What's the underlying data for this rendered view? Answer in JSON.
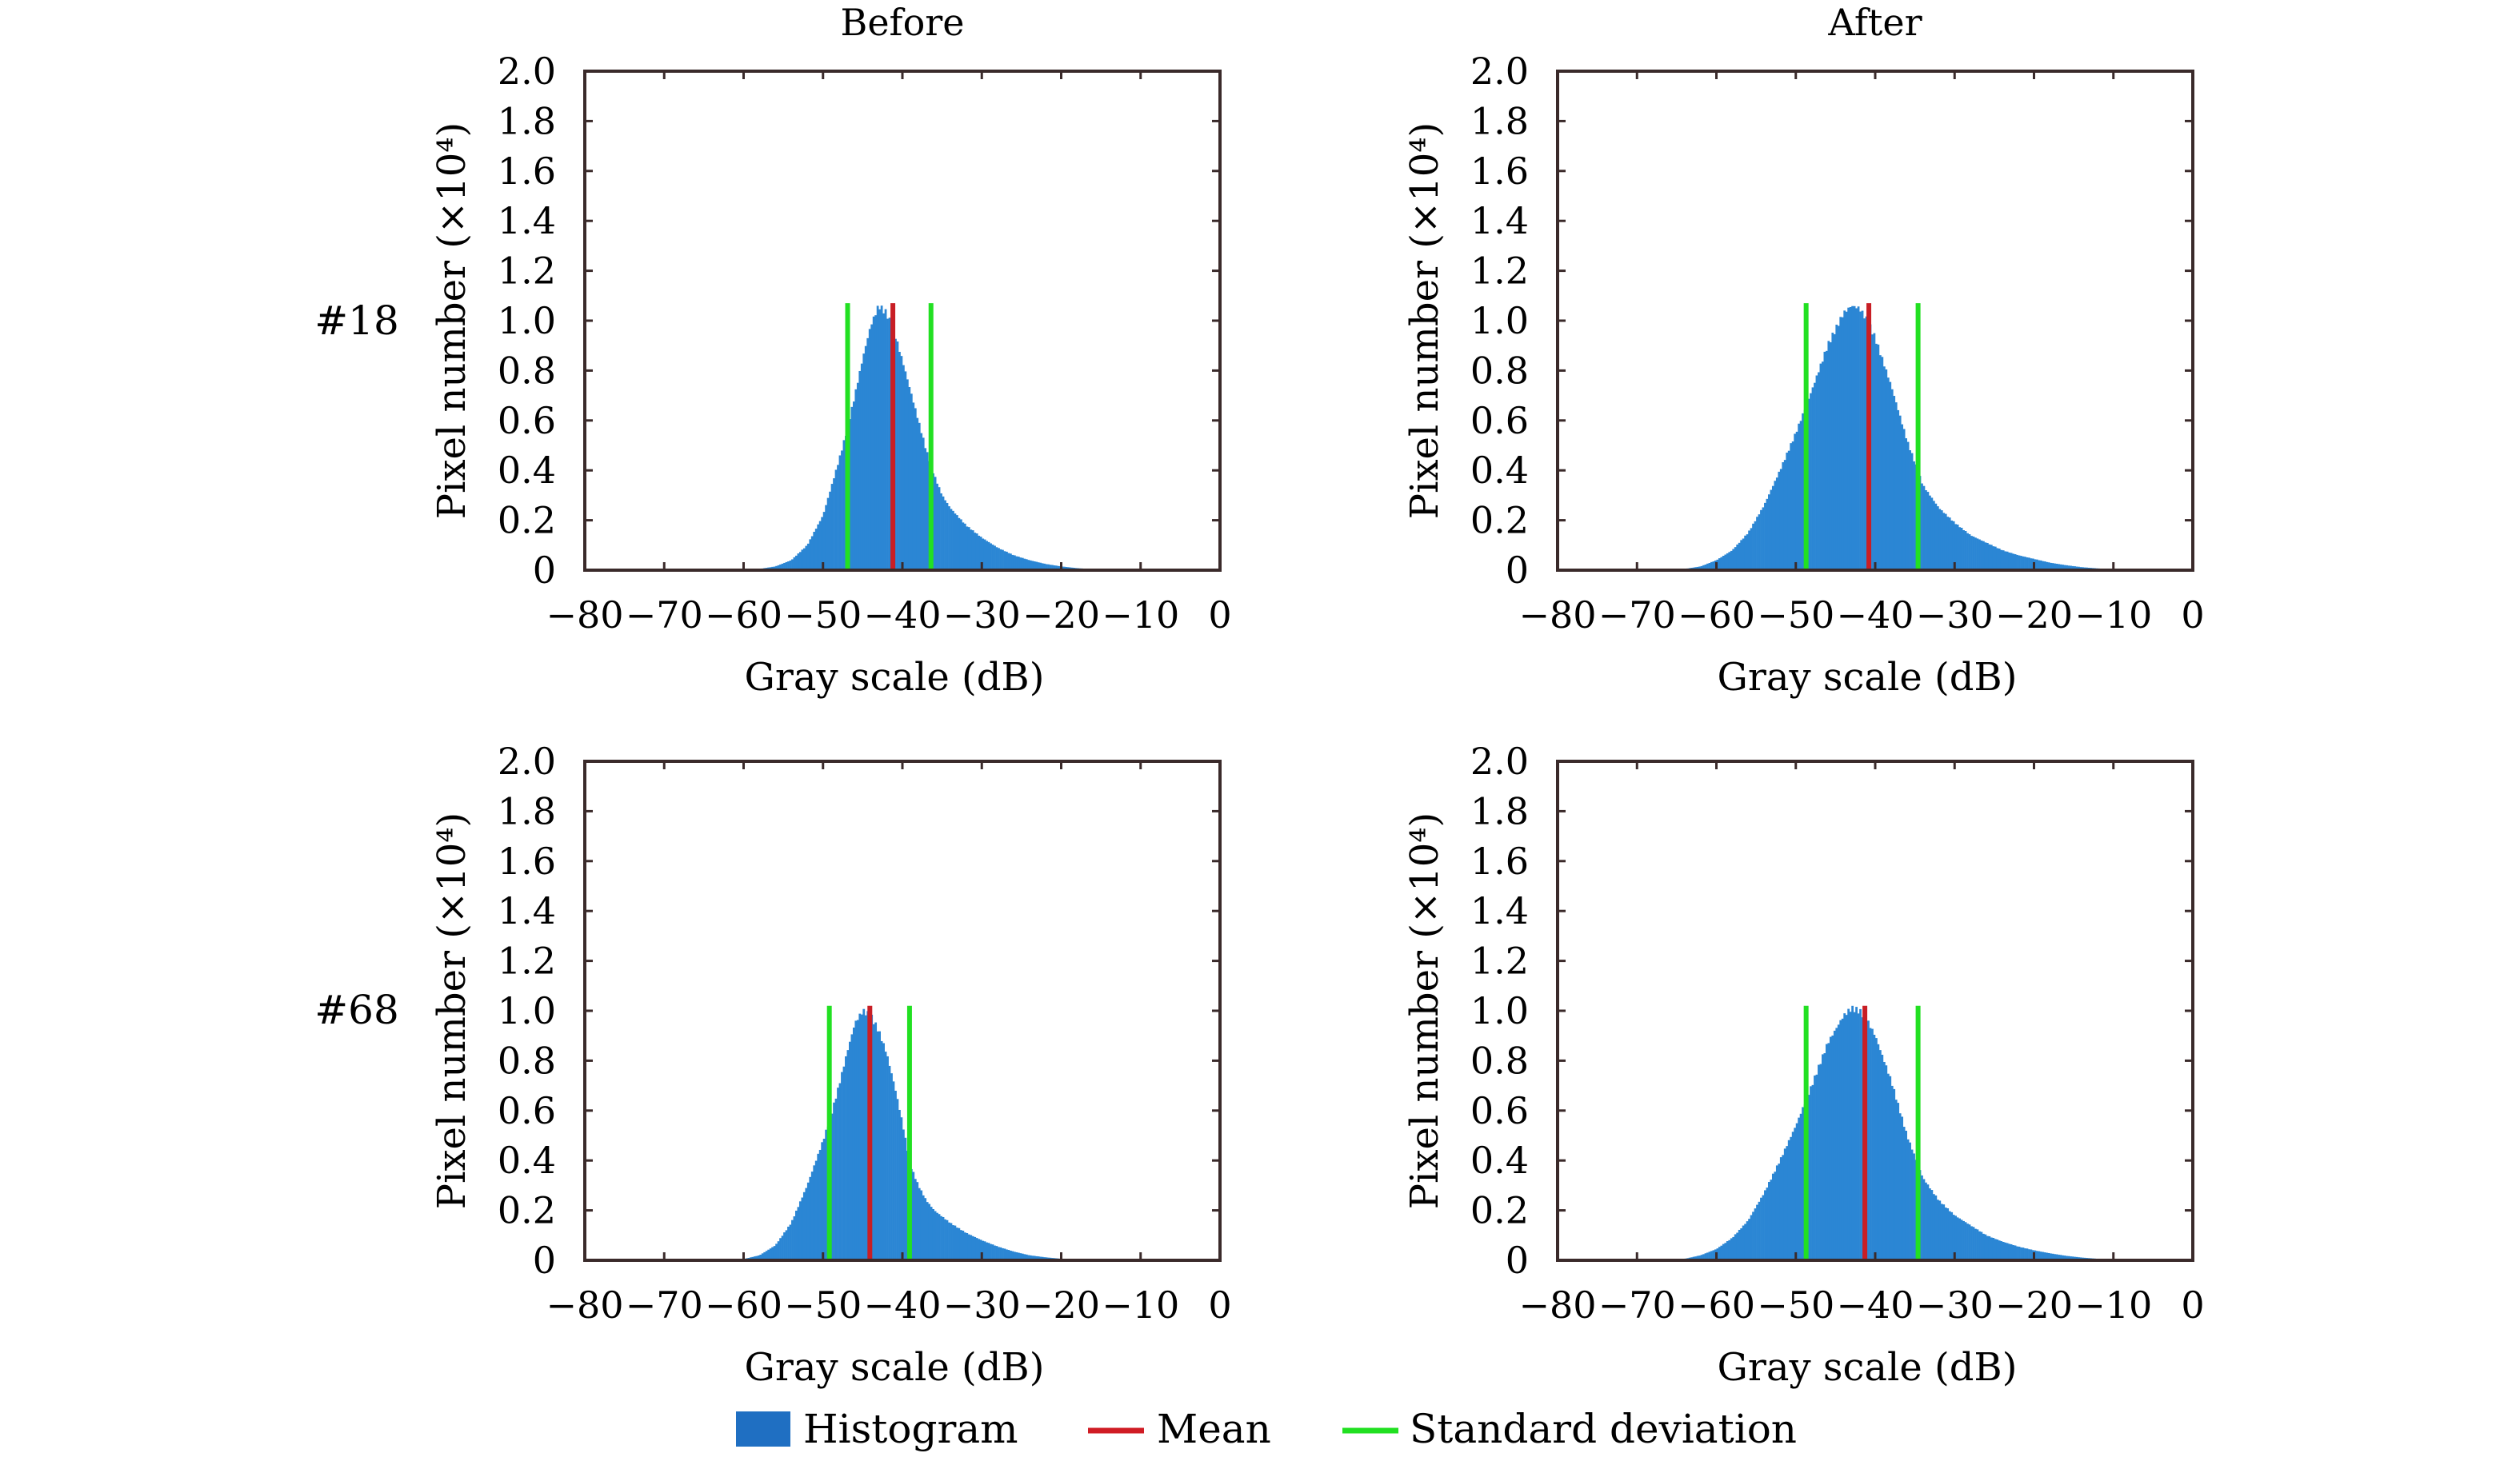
{
  "figure": {
    "column_titles": [
      "Before",
      "After"
    ],
    "row_labels": [
      "#18",
      "#68"
    ],
    "legend": [
      {
        "label": "Histogram",
        "kind": "patch",
        "color": "#1f6fc2"
      },
      {
        "label": "Mean",
        "kind": "line",
        "color": "#d01c24"
      },
      {
        "label": "Standard deviation",
        "kind": "line",
        "color": "#21e021"
      }
    ],
    "colors": {
      "histogram": "#2b86d4",
      "histogram_edge": "#1b6fb8",
      "mean": "#c81e25",
      "std": "#22e022",
      "axes": "#3a2a2a"
    }
  },
  "chart_data": [
    {
      "type": "bar",
      "panel": "Before #18",
      "row": "#18",
      "column": "Before",
      "xlabel": "Gray scale (dB)",
      "ylabel": "Pixel number (×10⁴)",
      "xlim": [
        -80,
        0
      ],
      "ylim": [
        0,
        2.0
      ],
      "xticks": [
        -80,
        -70,
        -60,
        -50,
        -40,
        -30,
        -20,
        -10,
        0
      ],
      "xtick_labels": [
        "−80",
        "−70",
        "−60",
        "−50",
        "−40",
        "−30",
        "−20",
        "−10",
        "0"
      ],
      "yticks": [
        0,
        0.2,
        0.4,
        0.6,
        0.8,
        1.0,
        1.2,
        1.4,
        1.6,
        1.8,
        2.0
      ],
      "ytick_labels": [
        "0",
        "0.2",
        "0.4",
        "0.6",
        "0.8",
        "1.0",
        "1.2",
        "1.4",
        "1.6",
        "1.8",
        "2.0"
      ],
      "grid": false,
      "mean": -41.2,
      "std_lines": [
        -46.9,
        -36.4
      ],
      "stat_line_height": 1.07,
      "histogram": {
        "x": [
          -60,
          -58,
          -56,
          -54,
          -52,
          -50,
          -48,
          -47,
          -46,
          -45,
          -44,
          -43,
          -42,
          -41,
          -40,
          -39,
          -38,
          -37,
          -36,
          -35,
          -34,
          -32,
          -30,
          -28,
          -26,
          -24,
          -22,
          -20,
          -18,
          -16,
          -14,
          -12
        ],
        "y": [
          0,
          0.005,
          0.015,
          0.04,
          0.1,
          0.22,
          0.44,
          0.56,
          0.7,
          0.85,
          0.98,
          1.06,
          1.03,
          0.95,
          0.84,
          0.72,
          0.6,
          0.48,
          0.38,
          0.3,
          0.25,
          0.18,
          0.13,
          0.09,
          0.06,
          0.04,
          0.025,
          0.015,
          0.008,
          0.004,
          0.002,
          0
        ]
      }
    },
    {
      "type": "bar",
      "panel": "After #18",
      "row": "#18",
      "column": "After",
      "xlabel": "Gray scale (dB)",
      "ylabel": "Pixel number (×10⁴)",
      "xlim": [
        -80,
        0
      ],
      "ylim": [
        0,
        2.0
      ],
      "xticks": [
        -80,
        -70,
        -60,
        -50,
        -40,
        -30,
        -20,
        -10,
        0
      ],
      "xtick_labels": [
        "−80",
        "−70",
        "−60",
        "−50",
        "−40",
        "−30",
        "−20",
        "−10",
        "0"
      ],
      "yticks": [
        0,
        0.2,
        0.4,
        0.6,
        0.8,
        1.0,
        1.2,
        1.4,
        1.6,
        1.8,
        2.0
      ],
      "ytick_labels": [
        "0",
        "0.2",
        "0.4",
        "0.6",
        "0.8",
        "1.0",
        "1.2",
        "1.4",
        "1.6",
        "1.8",
        "2.0"
      ],
      "grid": false,
      "mean": -40.8,
      "std_lines": [
        -48.7,
        -34.6
      ],
      "stat_line_height": 1.07,
      "histogram": {
        "x": [
          -66,
          -64,
          -62,
          -60,
          -58,
          -56,
          -54,
          -52,
          -50,
          -48,
          -46,
          -44,
          -43,
          -42,
          -41,
          -40,
          -38,
          -36,
          -34,
          -32,
          -30,
          -28,
          -26,
          -24,
          -22,
          -20,
          -18,
          -16,
          -14,
          -12,
          -10,
          -8,
          -6
        ],
        "y": [
          0,
          0.005,
          0.015,
          0.04,
          0.08,
          0.15,
          0.26,
          0.4,
          0.55,
          0.72,
          0.9,
          1.03,
          1.06,
          1.05,
          1.0,
          0.93,
          0.74,
          0.52,
          0.34,
          0.25,
          0.19,
          0.14,
          0.11,
          0.08,
          0.06,
          0.045,
          0.03,
          0.02,
          0.012,
          0.007,
          0.004,
          0.002,
          0
        ]
      }
    },
    {
      "type": "bar",
      "panel": "Before #68",
      "row": "#68",
      "column": "Before",
      "xlabel": "Gray scale (dB)",
      "ylabel": "Pixel number (×10⁴)",
      "xlim": [
        -80,
        0
      ],
      "ylim": [
        0,
        2.0
      ],
      "xticks": [
        -80,
        -70,
        -60,
        -50,
        -40,
        -30,
        -20,
        -10,
        0
      ],
      "xtick_labels": [
        "−80",
        "−70",
        "−60",
        "−50",
        "−40",
        "−30",
        "−20",
        "−10",
        "0"
      ],
      "yticks": [
        0,
        0.2,
        0.4,
        0.6,
        0.8,
        1.0,
        1.2,
        1.4,
        1.6,
        1.8,
        2.0
      ],
      "ytick_labels": [
        "0",
        "0.2",
        "0.4",
        "0.6",
        "0.8",
        "1.0",
        "1.2",
        "1.4",
        "1.6",
        "1.8",
        "2.0"
      ],
      "grid": false,
      "mean": -44.1,
      "std_lines": [
        -49.2,
        -39.1
      ],
      "stat_line_height": 1.02,
      "histogram": {
        "x": [
          -62,
          -60,
          -58,
          -56,
          -54,
          -52,
          -50,
          -49,
          -48,
          -47,
          -46,
          -45,
          -44,
          -43,
          -42,
          -41,
          -40,
          -39,
          -38,
          -37,
          -36,
          -34,
          -32,
          -30,
          -28,
          -26,
          -24,
          -22,
          -20,
          -18,
          -16
        ],
        "y": [
          0,
          0.005,
          0.02,
          0.06,
          0.15,
          0.3,
          0.48,
          0.58,
          0.7,
          0.83,
          0.95,
          1.0,
          0.98,
          0.92,
          0.83,
          0.7,
          0.55,
          0.38,
          0.3,
          0.24,
          0.2,
          0.15,
          0.11,
          0.08,
          0.055,
          0.035,
          0.02,
          0.012,
          0.006,
          0.003,
          0
        ]
      }
    },
    {
      "type": "bar",
      "panel": "After #68",
      "row": "#68",
      "column": "After",
      "xlabel": "Gray scale (dB)",
      "ylabel": "Pixel number (×10⁴)",
      "xlim": [
        -80,
        0
      ],
      "ylim": [
        0,
        2.0
      ],
      "xticks": [
        -80,
        -70,
        -60,
        -50,
        -40,
        -30,
        -20,
        -10,
        0
      ],
      "xtick_labels": [
        "−80",
        "−70",
        "−60",
        "−50",
        "−40",
        "−30",
        "−20",
        "−10",
        "0"
      ],
      "yticks": [
        0,
        0.2,
        0.4,
        0.6,
        0.8,
        1.0,
        1.2,
        1.4,
        1.6,
        1.8,
        2.0
      ],
      "ytick_labels": [
        "0",
        "0.2",
        "0.4",
        "0.6",
        "0.8",
        "1.0",
        "1.2",
        "1.4",
        "1.6",
        "1.8",
        "2.0"
      ],
      "grid": false,
      "mean": -41.3,
      "std_lines": [
        -48.7,
        -34.6
      ],
      "stat_line_height": 1.02,
      "histogram": {
        "x": [
          -66,
          -64,
          -62,
          -60,
          -58,
          -56,
          -54,
          -52,
          -50,
          -48,
          -46,
          -44,
          -43,
          -42,
          -41,
          -40,
          -38,
          -36,
          -34,
          -32,
          -30,
          -28,
          -26,
          -24,
          -22,
          -20,
          -18,
          -16,
          -14,
          -12,
          -10,
          -8,
          -6
        ],
        "y": [
          0,
          0.006,
          0.02,
          0.045,
          0.09,
          0.16,
          0.27,
          0.4,
          0.54,
          0.7,
          0.87,
          0.98,
          1.01,
          1.0,
          0.96,
          0.9,
          0.72,
          0.5,
          0.33,
          0.24,
          0.18,
          0.14,
          0.1,
          0.075,
          0.055,
          0.04,
          0.028,
          0.018,
          0.011,
          0.006,
          0.003,
          0.001,
          0
        ]
      }
    }
  ]
}
